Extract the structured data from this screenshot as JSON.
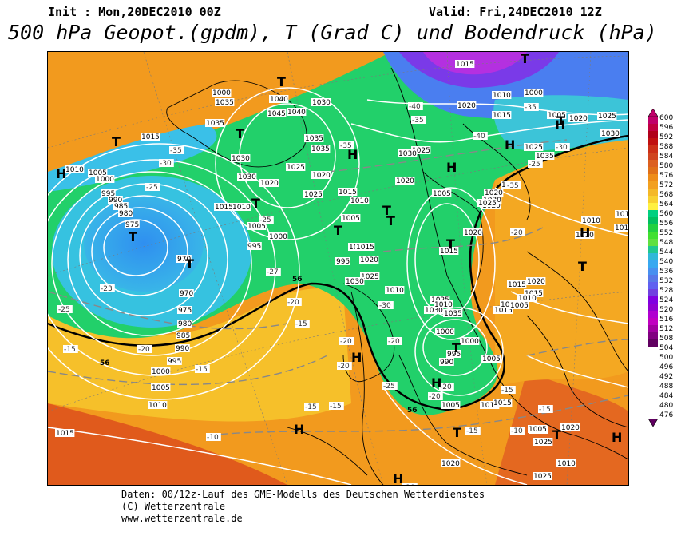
{
  "header": {
    "init": "Init : Mon,20DEC2010 00Z",
    "valid": "Valid: Fri,24DEC2010 12Z",
    "title": "500 hPa Geopot.(gpdm), T (Grad C) und Bodendruck (hPa)"
  },
  "footer": {
    "line1": "Daten: 00/12z-Lauf des GME-Modells des Deutschen Wetterdienstes",
    "line2": "(C) Wetterzentrale",
    "line3": "www.wetterzentrale.de"
  },
  "legend": {
    "levels": [
      "600",
      "596",
      "592",
      "588",
      "584",
      "580",
      "576",
      "572",
      "568",
      "564",
      "560",
      "556",
      "552",
      "548",
      "544",
      "540",
      "536",
      "532",
      "528",
      "524",
      "520",
      "516",
      "512",
      "508",
      "504",
      "500",
      "496",
      "492",
      "488",
      "484",
      "480",
      "476"
    ],
    "colors": [
      "#c0006a",
      "#c00040",
      "#b0001a",
      "#c01010",
      "#cc3018",
      "#d04520",
      "#dc6020",
      "#e07018",
      "#ee8c18",
      "#f2a020",
      "#f4b828",
      "#f8d030",
      "#fff040",
      "#00d080",
      "#00c060",
      "#20d040",
      "#40e030",
      "#60e040",
      "#20c890",
      "#30b8d8",
      "#38a8f0",
      "#4890f0",
      "#5878e8",
      "#6060f0",
      "#7040e0",
      "#8000e0",
      "#9000d0",
      "#b000d0",
      "#c000c0",
      "#a000a0",
      "#800080",
      "#600060"
    ]
  },
  "map": {
    "pressure_labels": [
      "1035",
      "1035",
      "1040",
      "1045",
      "1040",
      "1030",
      "1035",
      "1035",
      "1035",
      "1030",
      "1020",
      "1015",
      "1010",
      "1005",
      "1000",
      "995",
      "990",
      "985",
      "980",
      "975",
      "970",
      "970",
      "975",
      "980",
      "985",
      "990",
      "995",
      "1000",
      "1005",
      "1010",
      "1015",
      "1015",
      "1010",
      "1005",
      "1000",
      "995",
      "1025",
      "1030",
      "1025",
      "1020",
      "1015",
      "1010",
      "1005",
      "1000",
      "995",
      "1020",
      "1025",
      "1030",
      "1010",
      "1015",
      "1020",
      "1025",
      "1030",
      "1005",
      "1015",
      "1020",
      "1020",
      "1025",
      "1030",
      "1025",
      "1020",
      "1025",
      "1030",
      "1035",
      "1010",
      "1015",
      "1020",
      "1015",
      "1020",
      "1010",
      "1005",
      "1000",
      "1000",
      "990",
      "995",
      "1005",
      "1010",
      "1015",
      "1020",
      "1025",
      "1010",
      "1015",
      "1005",
      "1025",
      "1020",
      "1015",
      "1010",
      "1010",
      "1015",
      "1025",
      "1020",
      "1030",
      "1035",
      "1025",
      "1015",
      "1005",
      "1000",
      "1010",
      "1015",
      "1020",
      "1015",
      "1005",
      "1000"
    ],
    "temp_labels": [
      "-35",
      "-30",
      "-25",
      "-23",
      "-25",
      "-15",
      "-20",
      "-15",
      "-27",
      "-25",
      "-20",
      "-15",
      "-30",
      "-35",
      "-35",
      "-40",
      "-40",
      "-35",
      "-35",
      "-30",
      "-25",
      "-20",
      "-25",
      "-20",
      "-20",
      "-15",
      "-20",
      "-20",
      "-15",
      "-10",
      "-15",
      "-15",
      "-10",
      "-15",
      "-10",
      "-20"
    ],
    "highs_lows": [
      "T",
      "T",
      "T",
      "T",
      "T",
      "T",
      "T",
      "T",
      "T",
      "T",
      "T",
      "T",
      "T",
      "T",
      "T",
      "T",
      "H",
      "H",
      "H",
      "H",
      "H",
      "H",
      "H",
      "H",
      "H",
      "H",
      "H"
    ],
    "geopot_labels": [
      "56",
      "56",
      "56"
    ]
  }
}
